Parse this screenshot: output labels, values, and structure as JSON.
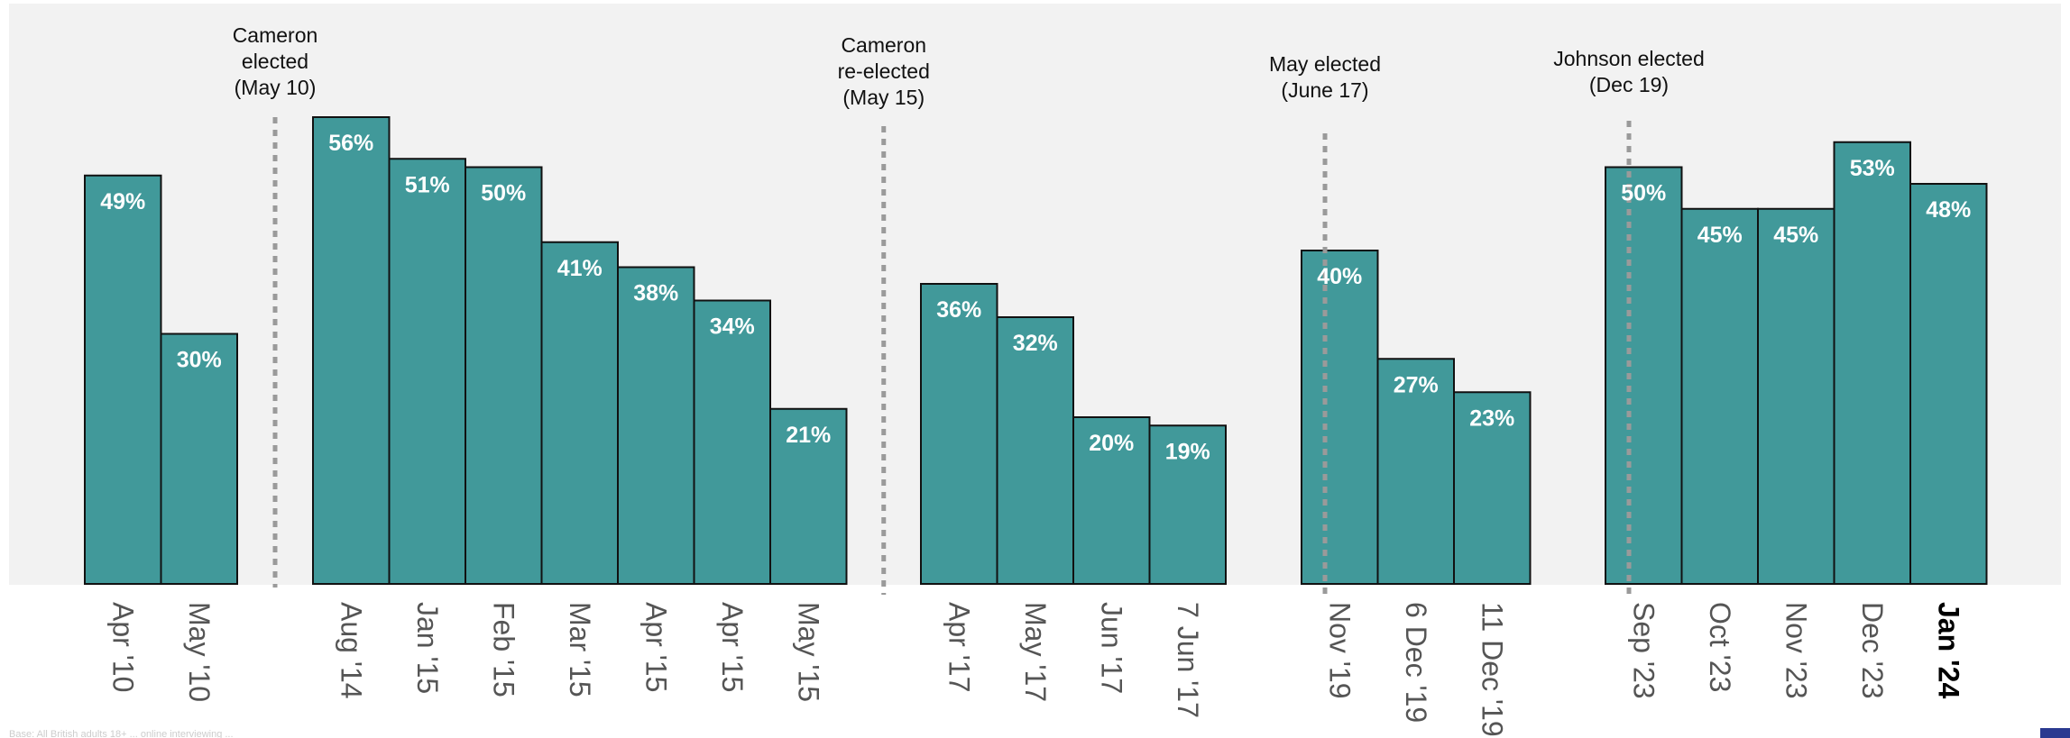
{
  "chart_data": {
    "type": "bar",
    "title": "",
    "xlabel": "",
    "ylabel": "",
    "ylim": [
      0,
      62
    ],
    "unit": "%",
    "bar_color": "#41999a",
    "background_color": "#f2f2f2",
    "grid": false,
    "groups": [
      {
        "categories": [
          "Apr '10",
          "May '10"
        ],
        "values": [
          49,
          30
        ]
      },
      {
        "categories": [
          "Aug '14",
          "Jan '15",
          "Feb '15",
          "Mar '15",
          "Apr '15",
          "Apr '15",
          "May '15"
        ],
        "values": [
          56,
          51,
          50,
          41,
          38,
          34,
          21
        ]
      },
      {
        "categories": [
          "Apr '17",
          "May '17",
          "Jun '17",
          "7 Jun '17"
        ],
        "values": [
          36,
          32,
          20,
          19
        ]
      },
      {
        "categories": [
          "Nov '19",
          "6 Dec '19",
          "11 Dec '19"
        ],
        "values": [
          40,
          27,
          23
        ]
      },
      {
        "categories": [
          "Sep '23",
          "Oct '23",
          "Nov '23",
          "Dec '23",
          "Jan '24"
        ],
        "values": [
          50,
          45,
          45,
          53,
          48
        ]
      }
    ],
    "highlighted_category": "Jan '24",
    "annotations": [
      {
        "lines": [
          "Cameron",
          "elected",
          "(May 10)"
        ],
        "between": [
          "May '10",
          "Aug '14"
        ]
      },
      {
        "lines": [
          "Cameron",
          "re-elected",
          "(May 15)"
        ],
        "between": [
          "May '15",
          "Apr '17"
        ]
      },
      {
        "lines": [
          "May elected",
          "(June 17)"
        ],
        "at": "Nov '19"
      },
      {
        "lines": [
          "Johnson elected",
          "(Dec 19)"
        ],
        "at": "Sep '23"
      }
    ]
  },
  "footer": {
    "source_note": "Base: All British adults 18+ ... online interviewing ...",
    "accent_color": "#2a3990"
  }
}
